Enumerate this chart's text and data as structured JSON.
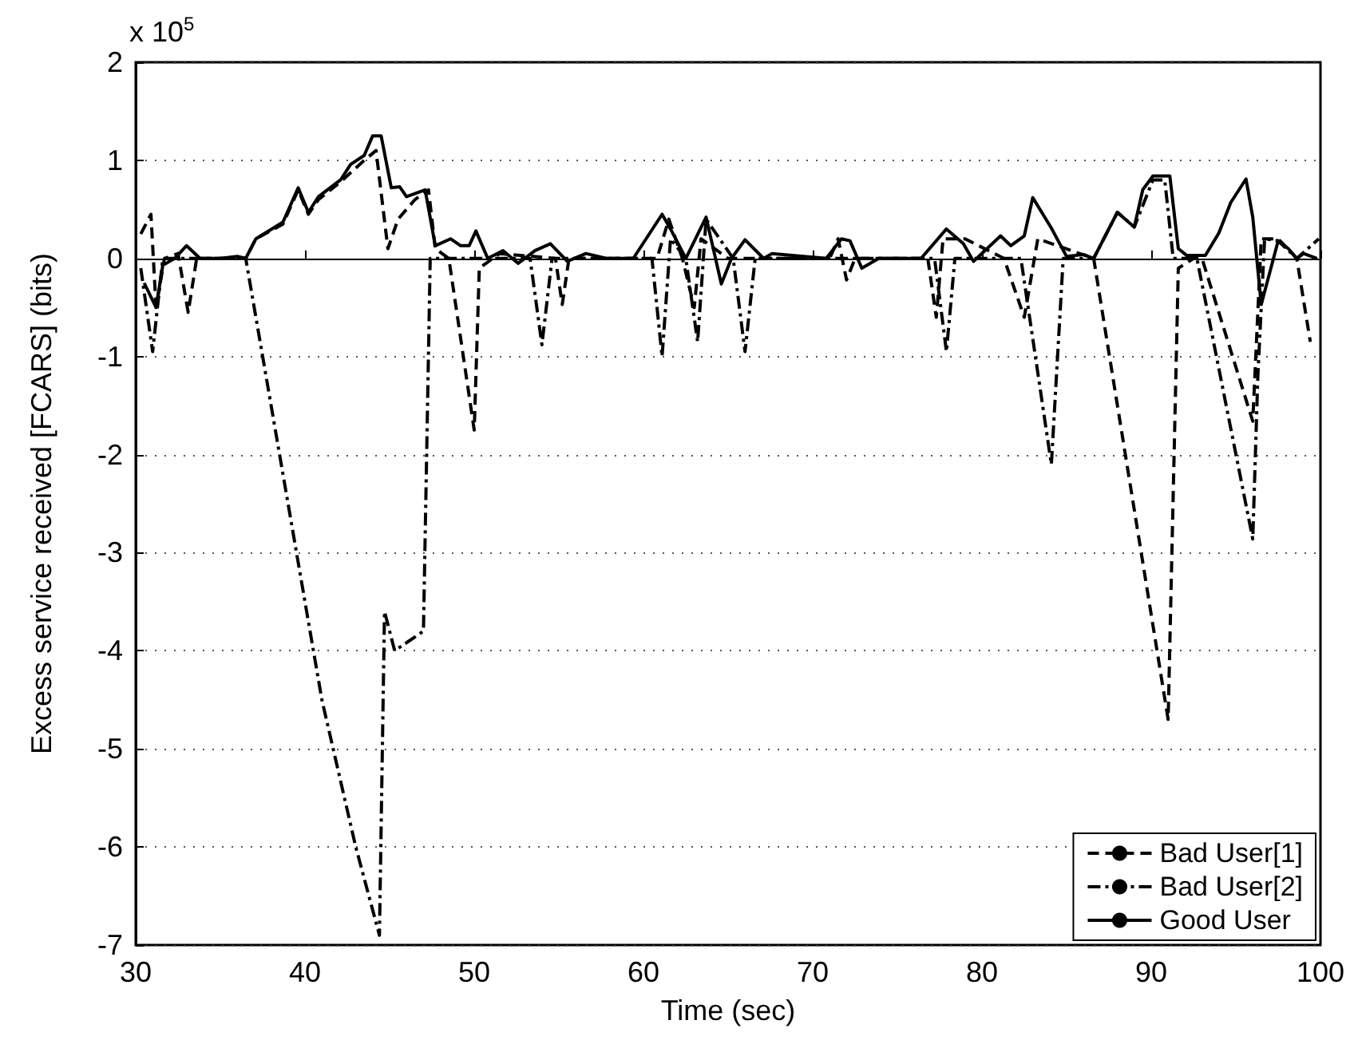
{
  "chart_data": {
    "type": "line",
    "xlabel": "Time (sec)",
    "ylabel": "Excess service received [FCARS] (bits)",
    "annotations": [
      "x 10$^{5}$"
    ],
    "xlim": [
      30,
      100
    ],
    "xticks": [
      30,
      40,
      50,
      60,
      70,
      80,
      90,
      100
    ],
    "ylim": [
      -7,
      2
    ],
    "yticks": [
      -7,
      -6,
      -5,
      -4,
      -3,
      -2,
      -1,
      0,
      1,
      2
    ],
    "grid": "y",
    "legend": "bottom right",
    "marker": "none",
    "series": [
      {
        "name": "Bad User[1]",
        "color": "#000000",
        "line_style": "dashed",
        "x": [
          30.3,
          30.9,
          31.2,
          31.7,
          32.5,
          33.1,
          33.6,
          36.5,
          37.1,
          38.7,
          39.6,
          40.2,
          40.8,
          42.1,
          43.5,
          44.2,
          44.9,
          45.5,
          46.5,
          47.3,
          47.7,
          48.5,
          50,
          50.3,
          51.5,
          54.8,
          55.2,
          55.6,
          60.8,
          61.5,
          62.3,
          63,
          63.4,
          65,
          71,
          71.5,
          72,
          72.5,
          76.8,
          77.3,
          77.7,
          79,
          81.3,
          82.5,
          83.3,
          86.6,
          91,
          91.6,
          92.5,
          93,
          96,
          96.5,
          97.5,
          98.6,
          99.4
        ],
        "values": [
          0.25,
          0.45,
          -0.5,
          0,
          0.05,
          -0.55,
          0,
          0,
          0.2,
          0.35,
          0.7,
          0.45,
          0.6,
          0.78,
          1,
          1.1,
          0.1,
          0.4,
          0.6,
          0.7,
          0.1,
          0,
          -1.75,
          -0.1,
          0.05,
          0,
          -0.47,
          0,
          0,
          0.4,
          0,
          -0.5,
          0.2,
          0,
          0,
          0.2,
          -0.22,
          0,
          0,
          -0.6,
          0.2,
          0.2,
          0,
          -0.6,
          0.2,
          0,
          -4.7,
          -0.1,
          0,
          0,
          -1.66,
          0.2,
          0.2,
          0,
          -0.85
        ]
      },
      {
        "name": "Bad User[2]",
        "color": "#000000",
        "line_style": "dashdot",
        "x": [
          30.3,
          31,
          31.6,
          36.5,
          37.5,
          39,
          41,
          43,
          44.4,
          44.7,
          45.3,
          47,
          47.4,
          48.5,
          53.3,
          54,
          54.6,
          60.5,
          61.1,
          61.6,
          62.5,
          63.2,
          63.7,
          65.3,
          66,
          66.6,
          77.2,
          77.9,
          78.4,
          82.3,
          84.1,
          84.8,
          86.6,
          88,
          89,
          90.1,
          90.8,
          91.3,
          92.7,
          96,
          96.3,
          96.7,
          97.5,
          98.6,
          99.9
        ],
        "values": [
          -0.1,
          -0.95,
          0,
          0,
          -1,
          -2.5,
          -4.5,
          -6,
          -6.9,
          -3.6,
          -4,
          -3.8,
          0,
          0,
          0,
          -0.88,
          0,
          0,
          -1,
          0.2,
          0,
          -0.85,
          0.4,
          0,
          -0.95,
          0,
          0,
          -0.95,
          0,
          0,
          -2.1,
          0,
          0,
          0.47,
          0.32,
          0.8,
          0.8,
          0,
          0,
          -2.86,
          -1.2,
          0.2,
          0.18,
          0,
          0.2
        ]
      },
      {
        "name": "Good User",
        "color": "#000000",
        "line_style": "solid",
        "x": [
          30.5,
          31.2,
          31.6,
          32.3,
          33,
          33.8,
          35,
          36,
          36.5,
          37.1,
          38.7,
          39.6,
          40.2,
          40.8,
          42.1,
          42.7,
          43.5,
          44,
          44.5,
          45.1,
          45.6,
          46,
          47.1,
          47.7,
          48.6,
          49.2,
          49.7,
          50.1,
          50.8,
          51.7,
          52.6,
          53.6,
          54.5,
          55.5,
          56.6,
          57.8,
          59.4,
          61.1,
          61.6,
          62.5,
          63.7,
          64.6,
          65.2,
          66,
          67.1,
          67.6,
          70.8,
          71.7,
          72.2,
          72.9,
          73.9,
          76.4,
          77.9,
          78.9,
          79.5,
          81.1,
          81.7,
          82.5,
          83,
          84.1,
          85,
          86,
          86.6,
          88,
          89,
          89.5,
          90.1,
          91.1,
          91.6,
          92.1,
          93.2,
          94,
          94.7,
          95.6,
          96,
          96.5,
          97.5,
          98.1,
          98.6,
          99,
          99.8
        ],
        "values": [
          -0.25,
          -0.5,
          -0.07,
          0,
          0.13,
          0,
          0,
          0.02,
          0,
          0.2,
          0.37,
          0.72,
          0.47,
          0.63,
          0.8,
          0.96,
          1.05,
          1.25,
          1.25,
          0.72,
          0.73,
          0.63,
          0.7,
          0.13,
          0.2,
          0.13,
          0.13,
          0.28,
          0,
          0.08,
          -0.05,
          0.08,
          0.15,
          -0.03,
          0.05,
          0,
          0,
          0.45,
          0.3,
          0,
          0.42,
          -0.26,
          0,
          0.19,
          0,
          0.05,
          0,
          0.2,
          0.18,
          -0.1,
          0,
          0,
          0.3,
          0.15,
          -0.03,
          0.23,
          0.13,
          0.23,
          0.62,
          0.31,
          0.02,
          0.04,
          0,
          0.47,
          0.32,
          0.7,
          0.84,
          0.84,
          0.1,
          0.03,
          0.03,
          0.26,
          0.57,
          0.81,
          0.42,
          -0.47,
          0.18,
          0.1,
          0,
          0.05,
          0
        ]
      }
    ]
  }
}
